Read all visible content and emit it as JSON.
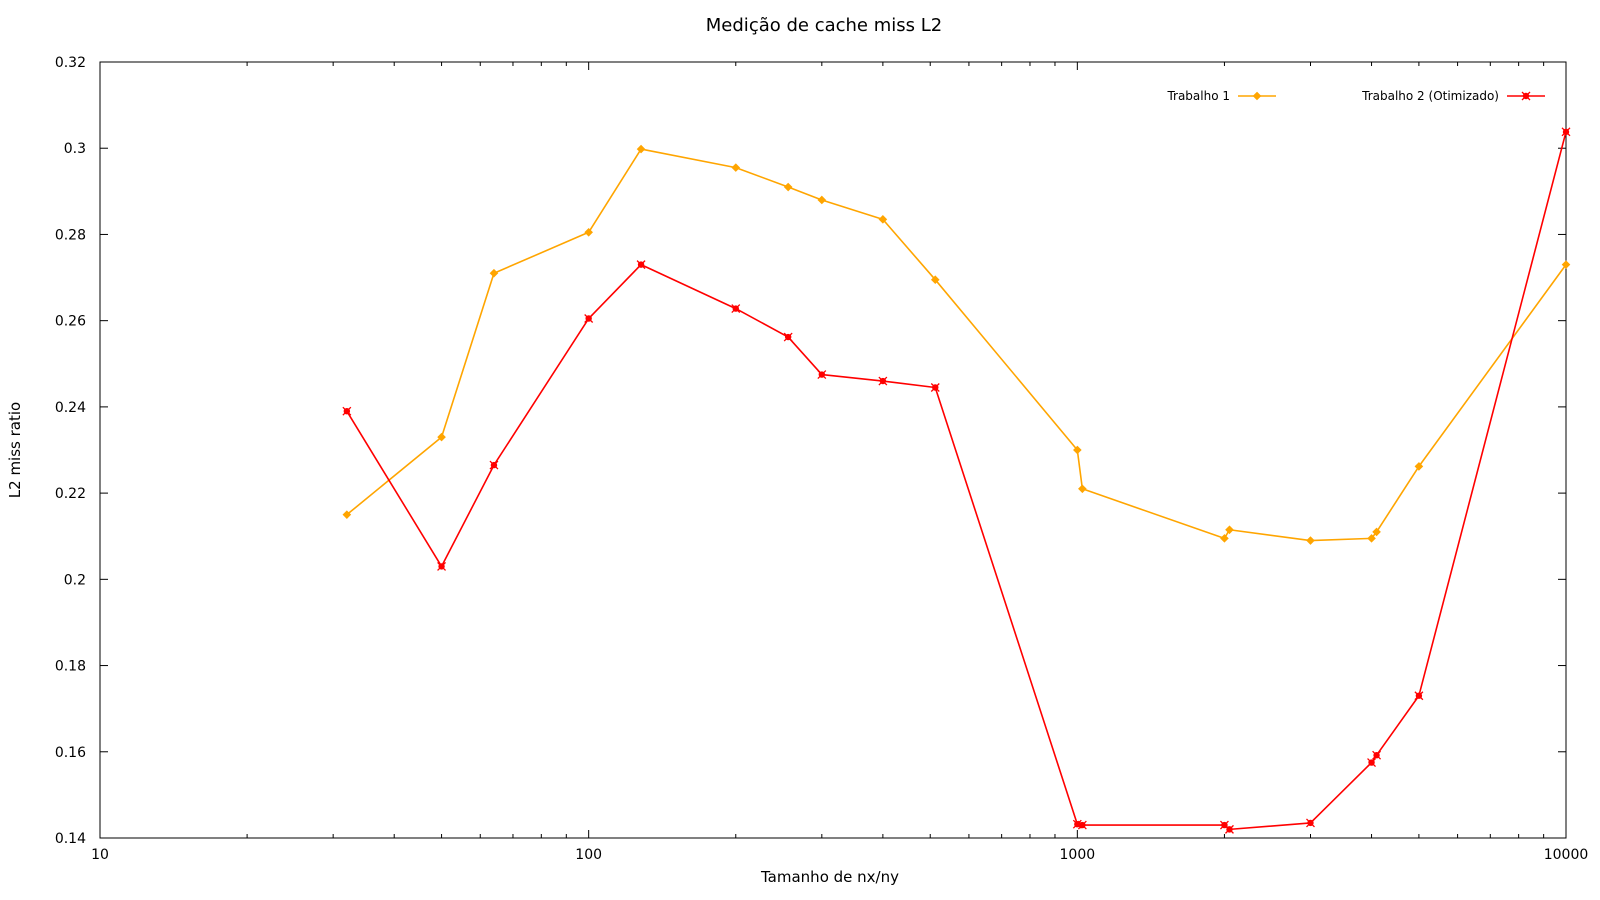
{
  "chart_data": {
    "type": "line",
    "title": "Medição de cache miss L2",
    "xlabel": "Tamanho de nx/ny",
    "ylabel": "L2 miss ratio",
    "x_scale": "log",
    "xlim": [
      10,
      10000
    ],
    "ylim": [
      0.14,
      0.32
    ],
    "x_ticks": [
      10,
      100,
      1000,
      10000
    ],
    "x_tick_labels": [
      "10",
      "100",
      "1000",
      "10000"
    ],
    "y_ticks": [
      0.14,
      0.16,
      0.18,
      0.2,
      0.22,
      0.24,
      0.26,
      0.28,
      0.3,
      0.32
    ],
    "y_tick_labels": [
      "0.14",
      "0.16",
      "0.18",
      "0.2",
      "0.22",
      "0.24",
      "0.26",
      "0.28",
      "0.3",
      "0.32"
    ],
    "grid": false,
    "legend_position": "top-right",
    "series": [
      {
        "name": "Trabalho 1",
        "color": "#FFA500",
        "marker": "diamond",
        "x": [
          32,
          50,
          64,
          100,
          128,
          200,
          256,
          300,
          400,
          512,
          1000,
          1024,
          2000,
          2048,
          3000,
          4000,
          4096,
          5000,
          10000
        ],
        "y": [
          0.215,
          0.233,
          0.271,
          0.2805,
          0.2998,
          0.2955,
          0.291,
          0.288,
          0.2835,
          0.2695,
          0.23,
          0.221,
          0.2095,
          0.2115,
          0.209,
          0.2095,
          0.211,
          0.2262,
          0.273
        ]
      },
      {
        "name": "Trabalho 2 (Otimizado)",
        "color": "#FF0000",
        "marker": "cross",
        "x": [
          32,
          50,
          64,
          100,
          128,
          200,
          256,
          300,
          400,
          512,
          1000,
          1024,
          2000,
          2048,
          3000,
          4000,
          4096,
          5000,
          10000
        ],
        "y": [
          0.239,
          0.203,
          0.2265,
          0.2605,
          0.273,
          0.2628,
          0.2562,
          0.2475,
          0.246,
          0.2445,
          0.1432,
          0.143,
          0.143,
          0.142,
          0.1435,
          0.1575,
          0.1592,
          0.173,
          0.3038
        ]
      }
    ]
  }
}
